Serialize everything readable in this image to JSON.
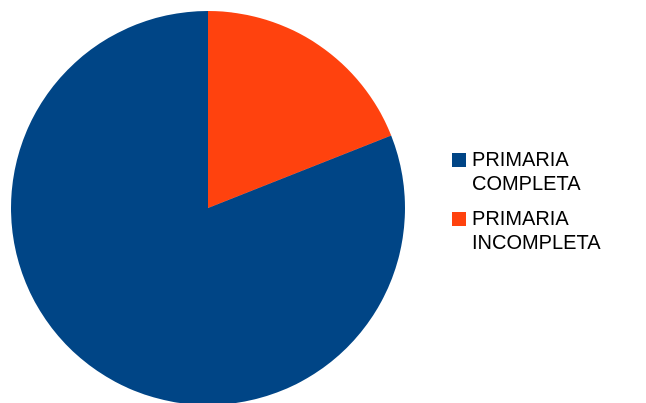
{
  "chart_data": {
    "type": "pie",
    "categories": [
      "PRIMARIA\nCOMPLETA",
      "PRIMARIA\nINCOMPLETA"
    ],
    "values": [
      81,
      19
    ],
    "colors": [
      "#004586",
      "#ff420e"
    ],
    "legend_position": "right",
    "title": ""
  }
}
